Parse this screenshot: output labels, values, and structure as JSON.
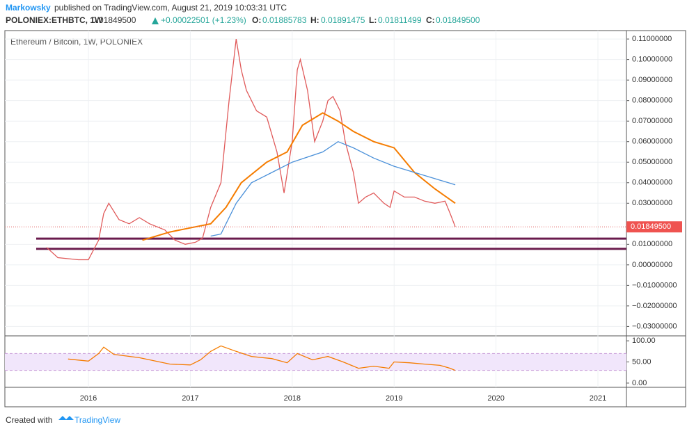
{
  "header": {
    "author": "Markowsky",
    "published": "published on TradingView.com, August 21, 2019 10:03:31 UTC"
  },
  "ohlc_line": {
    "symbol": "POLONIEX:ETHBTC, 1W",
    "close": "0.01849500",
    "change": "+0.00022501 (+1.23%)",
    "o_label": "O:",
    "o": "0.01885783",
    "h_label": "H:",
    "h": "0.01891475",
    "l_label": "L:",
    "l": "0.01811499",
    "c_label": "C:",
    "c": "0.01849500"
  },
  "chart_data": [
    {
      "type": "line",
      "title": "Ethereum / Bitcoin, 1W, POLONIEX",
      "xlim": [
        2015.18,
        2021.28
      ],
      "xticks": [
        2016,
        2017,
        2018,
        2019,
        2020,
        2021
      ],
      "ylim": [
        -0.0346,
        0.1141
      ],
      "yticks": [
        {
          "value": 0.11,
          "label": "0.11000000"
        },
        {
          "value": 0.1,
          "label": "0.10000000"
        },
        {
          "value": 0.09,
          "label": "0.09000000"
        },
        {
          "value": 0.08,
          "label": "0.08000000"
        },
        {
          "value": 0.07,
          "label": "0.07000000"
        },
        {
          "value": 0.06,
          "label": "0.06000000"
        },
        {
          "value": 0.05,
          "label": "0.05000000"
        },
        {
          "value": 0.04,
          "label": "0.04000000"
        },
        {
          "value": 0.03,
          "label": "0.03000000"
        },
        {
          "value": 0.01,
          "label": "0.01000000"
        },
        {
          "value": 0,
          "label": "0.00000000"
        },
        {
          "value": -0.01,
          "label": "−0.01000000"
        },
        {
          "value": -0.02,
          "label": "−0.02000000"
        },
        {
          "value": -0.03,
          "label": "−0.03000000"
        }
      ],
      "grid": true,
      "last_value": 0.018495,
      "hlines": [
        {
          "value": 0.0128,
          "color": "#6a1b4d"
        },
        {
          "value": 0.0078,
          "color": "#6a1b4d"
        }
      ],
      "series": [
        {
          "color": "#e05a5a",
          "x": [
            2015.59,
            2015.7,
            2015.9,
            2016.0,
            2016.1,
            2016.15,
            2016.2,
            2016.3,
            2016.4,
            2016.5,
            2016.6,
            2016.75,
            2016.85,
            2016.95,
            2017.05,
            2017.12,
            2017.2,
            2017.3,
            2017.38,
            2017.45,
            2017.5,
            2017.55,
            2017.65,
            2017.75,
            2017.85,
            2017.92,
            2018.0,
            2018.05,
            2018.08,
            2018.15,
            2018.22,
            2018.3,
            2018.35,
            2018.4,
            2018.47,
            2018.52,
            2018.6,
            2018.65,
            2018.72,
            2018.8,
            2018.9,
            2018.96,
            2019.0,
            2019.1,
            2019.2,
            2019.3,
            2019.4,
            2019.5,
            2019.55,
            2019.6
          ],
          "values": [
            0.0085,
            0.0035,
            0.0025,
            0.0025,
            0.012,
            0.025,
            0.03,
            0.022,
            0.02,
            0.023,
            0.02,
            0.017,
            0.012,
            0.01,
            0.011,
            0.013,
            0.028,
            0.04,
            0.08,
            0.11,
            0.095,
            0.085,
            0.075,
            0.072,
            0.055,
            0.035,
            0.06,
            0.095,
            0.1,
            0.085,
            0.06,
            0.07,
            0.08,
            0.082,
            0.075,
            0.06,
            0.045,
            0.03,
            0.033,
            0.035,
            0.03,
            0.028,
            0.036,
            0.033,
            0.033,
            0.031,
            0.03,
            0.031,
            0.025,
            0.0185
          ]
        },
        {
          "color": "#f57c00",
          "x": [
            2016.53,
            2016.8,
            2017.0,
            2017.2,
            2017.35,
            2017.5,
            2017.75,
            2017.95,
            2018.1,
            2018.3,
            2018.45,
            2018.6,
            2018.8,
            2019.0,
            2019.2,
            2019.4,
            2019.6
          ],
          "values": [
            0.012,
            0.016,
            0.018,
            0.02,
            0.028,
            0.04,
            0.05,
            0.055,
            0.068,
            0.074,
            0.07,
            0.065,
            0.06,
            0.057,
            0.045,
            0.037,
            0.03
          ]
        },
        {
          "color": "#4a90d9",
          "x": [
            2017.2,
            2017.3,
            2017.45,
            2017.6,
            2017.8,
            2018.0,
            2018.3,
            2018.45,
            2018.6,
            2018.8,
            2019.0,
            2019.2,
            2019.4,
            2019.6
          ],
          "values": [
            0.014,
            0.015,
            0.03,
            0.04,
            0.045,
            0.05,
            0.055,
            0.06,
            0.057,
            0.052,
            0.048,
            0.045,
            0.042,
            0.039
          ]
        }
      ]
    },
    {
      "type": "line",
      "ylim": [
        -10,
        111.7
      ],
      "yticks": [
        {
          "value": 100,
          "label": "100.00"
        },
        {
          "value": 50,
          "label": "50.00"
        },
        {
          "value": 0,
          "label": "0.00"
        }
      ],
      "band": [
        30,
        70
      ],
      "series": [
        {
          "color": "#f57c00",
          "x": [
            2015.8,
            2016.0,
            2016.1,
            2016.15,
            2016.25,
            2016.5,
            2016.8,
            2017.0,
            2017.1,
            2017.2,
            2017.3,
            2017.45,
            2017.6,
            2017.8,
            2017.95,
            2018.05,
            2018.2,
            2018.35,
            2018.5,
            2018.65,
            2018.8,
            2018.95,
            2019.0,
            2019.15,
            2019.3,
            2019.45,
            2019.55,
            2019.6
          ],
          "values": [
            57,
            52,
            70,
            85,
            68,
            60,
            45,
            43,
            55,
            75,
            88,
            75,
            63,
            58,
            48,
            70,
            55,
            63,
            50,
            35,
            40,
            35,
            50,
            48,
            45,
            42,
            35,
            30
          ]
        }
      ]
    }
  ],
  "footer": {
    "created_with": "Created with",
    "brand": "TradingView"
  }
}
